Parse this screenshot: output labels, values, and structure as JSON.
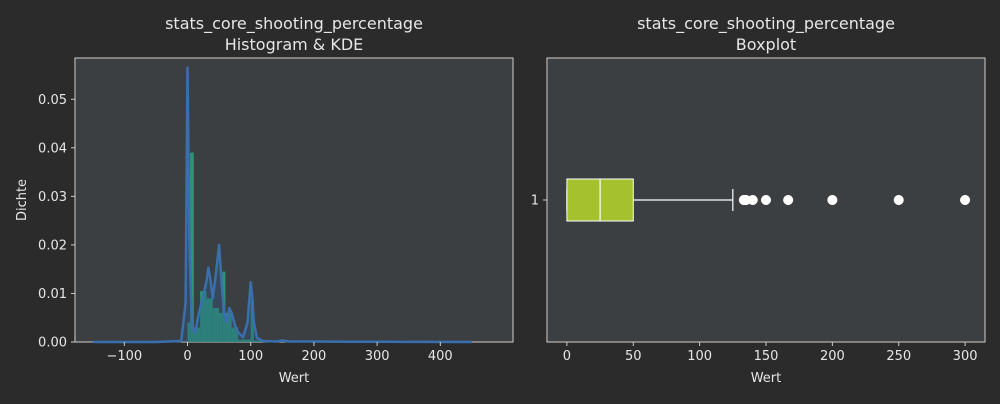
{
  "colors": {
    "figure_bg": "#2b2b2b",
    "axes_bg": "#3c3f42",
    "text": "#e6e6e6",
    "hist_bar": "#2a9d78",
    "kde_line": "#3a6fae",
    "kde_fill": "#2f5a8a",
    "box_fill": "#a6c12e",
    "outlier": "#ffffff"
  },
  "chart_data": [
    {
      "type": "histogram_kde",
      "title": "stats_core_shooting_percentage",
      "subtitle": "Histogram & KDE",
      "xlabel": "Wert",
      "ylabel": "Dichte",
      "xlim": [
        -178,
        515
      ],
      "ylim": [
        0,
        0.0585
      ],
      "xticks": [
        -100,
        0,
        100,
        200,
        300,
        400
      ],
      "xtick_labels": [
        "−100",
        "0",
        "100",
        "200",
        "300",
        "400"
      ],
      "yticks": [
        0,
        0.01,
        0.02,
        0.03,
        0.04,
        0.05
      ],
      "ytick_labels": [
        "0.00",
        "0.01",
        "0.02",
        "0.03",
        "0.04",
        "0.05"
      ],
      "bins": [
        {
          "x0": 0,
          "x1": 4,
          "value": 0.004
        },
        {
          "x0": 4,
          "x1": 10,
          "value": 0.039
        },
        {
          "x0": 10,
          "x1": 20,
          "value": 0.003
        },
        {
          "x0": 20,
          "x1": 30,
          "value": 0.0105
        },
        {
          "x0": 30,
          "x1": 40,
          "value": 0.009
        },
        {
          "x0": 40,
          "x1": 50,
          "value": 0.007
        },
        {
          "x0": 50,
          "x1": 55,
          "value": 0.006
        },
        {
          "x0": 55,
          "x1": 60,
          "value": 0.0145
        },
        {
          "x0": 60,
          "x1": 70,
          "value": 0.006
        },
        {
          "x0": 70,
          "x1": 80,
          "value": 0.003
        },
        {
          "x0": 80,
          "x1": 95,
          "value": 0.0005
        },
        {
          "x0": 95,
          "x1": 100,
          "value": 0.0005
        },
        {
          "x0": 100,
          "x1": 105,
          "value": 0.0085
        },
        {
          "x0": 105,
          "x1": 130,
          "value": 0.0003
        },
        {
          "x0": 130,
          "x1": 200,
          "value": 0.0001
        },
        {
          "x0": 200,
          "x1": 450,
          "value": 5e-05
        }
      ],
      "kde": {
        "x": [
          -150,
          -50,
          -10,
          -3,
          0,
          3,
          7,
          12,
          18,
          24,
          30,
          33,
          36,
          40,
          45,
          50,
          54,
          58,
          62,
          66,
          70,
          75,
          80,
          88,
          95,
          98,
          100,
          102,
          105,
          110,
          120,
          140,
          150,
          160,
          200,
          250,
          300,
          350,
          450
        ],
        "y": [
          0,
          0,
          0.0002,
          0.008,
          0.0565,
          0.02,
          0.003,
          0.002,
          0.006,
          0.009,
          0.0125,
          0.0153,
          0.013,
          0.009,
          0.014,
          0.02,
          0.012,
          0.006,
          0.004,
          0.007,
          0.006,
          0.0035,
          0.002,
          0.001,
          0.004,
          0.009,
          0.0123,
          0.01,
          0.004,
          0.0008,
          0.0002,
          0.0001,
          0.0003,
          0.0001,
          0.0001,
          5e-05,
          5e-05,
          2e-05,
          0
        ]
      }
    },
    {
      "type": "boxplot",
      "title": "stats_core_shooting_percentage",
      "subtitle": "Boxplot",
      "xlabel": "Wert",
      "xlim": [
        -15,
        315
      ],
      "xticks": [
        0,
        50,
        100,
        150,
        200,
        250,
        300
      ],
      "xtick_labels": [
        "0",
        "50",
        "100",
        "150",
        "200",
        "250",
        "300"
      ],
      "ytick_labels": [
        "1"
      ],
      "box": {
        "min": 0,
        "q1": 0,
        "median": 25,
        "q3": 50,
        "whisker_high": 125
      },
      "outliers": [
        133.3,
        135,
        140,
        150,
        166.7,
        200,
        250,
        300
      ]
    }
  ]
}
